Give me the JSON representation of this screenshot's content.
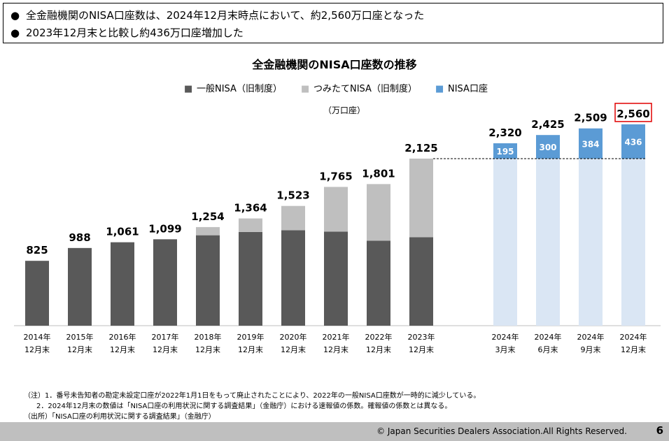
{
  "summary": {
    "bullet1": "全金融機関のNISA口座数は、2024年12月末時点において、約2,560万口座となった",
    "bullet2": "2023年12月末と比較し約436万口座増加した",
    "bullet_glyph": "●"
  },
  "chart_data": {
    "type": "bar",
    "title": "全金融機関のNISA口座数の推移",
    "unit_label": "（万口座）",
    "legend": [
      "一般NISA（旧制度）",
      "つみたてNISA（旧制度）",
      "NISA口座"
    ],
    "legend_marker": "■",
    "colors": {
      "general": "#595959",
      "tsumitate": "#bfbfbf",
      "nisa_base": "#dae6f4",
      "nisa_new": "#5b9bd5",
      "highlight_box": "#e00000"
    },
    "categories": [
      [
        "2014年",
        "12月末"
      ],
      [
        "2015年",
        "12月末"
      ],
      [
        "2016年",
        "12月末"
      ],
      [
        "2017年",
        "12月末"
      ],
      [
        "2018年",
        "12月末"
      ],
      [
        "2019年",
        "12月末"
      ],
      [
        "2020年",
        "12月末"
      ],
      [
        "2021年",
        "12月末"
      ],
      [
        "2022年",
        "12月末"
      ],
      [
        "2023年",
        "12月末"
      ],
      [
        "2024年",
        "3月末"
      ],
      [
        "2024年",
        "6月末"
      ],
      [
        "2024年",
        "9月末"
      ],
      [
        "2024年",
        "12月末"
      ]
    ],
    "series": [
      {
        "name": "一般NISA（旧制度）",
        "values": [
          825,
          988,
          1061,
          1099,
          1150,
          1192,
          1214,
          1197,
          1080,
          1125,
          null,
          null,
          null,
          null
        ]
      },
      {
        "name": "つみたてNISA（旧制度）",
        "values": [
          0,
          0,
          0,
          0,
          104,
          172,
          309,
          568,
          721,
          1000,
          null,
          null,
          null,
          null
        ]
      },
      {
        "name": "NISA口座",
        "values": [
          null,
          null,
          null,
          null,
          null,
          null,
          null,
          null,
          null,
          null,
          2320,
          2425,
          2509,
          2560
        ]
      }
    ],
    "nisa_base": 2125,
    "nisa_increase": [
      195,
      300,
      384,
      436
    ],
    "totals": [
      "825",
      "988",
      "1,061",
      "1,099",
      "1,254",
      "1,364",
      "1,523",
      "1,765",
      "1,801",
      "2,125",
      "2,320",
      "2,425",
      "2,509",
      "2,560"
    ],
    "highlighted_total_index": 13,
    "ylim": [
      0,
      2560
    ]
  },
  "notes": {
    "n1": "（注）1．番号未告知者の勘定未設定口座が2022年1月1日をもって廃止されたことにより、2022年の一般NISA口座数が一時的に減少している。",
    "n2": "2．2024年12月末の数値は「NISA口座の利用状況に関する調査結果」（金融庁）における速報値の係数。確報値の係数とは異なる。",
    "n3": "（出所）「NISA口座の利用状況に関する調査結果」（金融庁）"
  },
  "footer": {
    "copyright": "© Japan Securities Dealers Association.All Rights Reserved.",
    "page": "6"
  }
}
